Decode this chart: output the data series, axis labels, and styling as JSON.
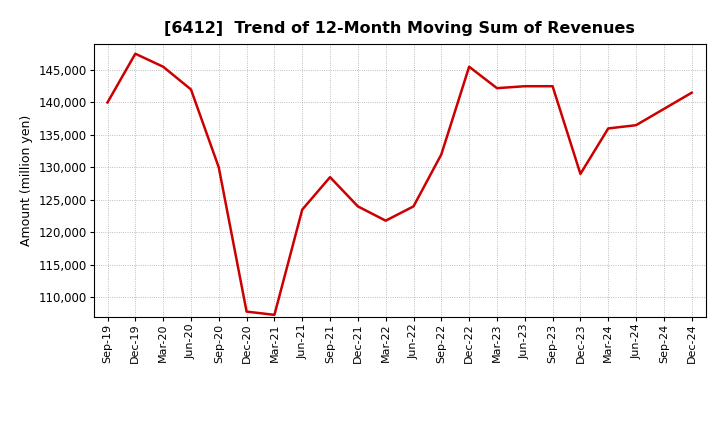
{
  "title": "[6412]  Trend of 12-Month Moving Sum of Revenues",
  "ylabel": "Amount (million yen)",
  "line_color": "#CC0000",
  "line_width": 1.8,
  "background_color": "#FFFFFF",
  "plot_bg_color": "#FFFFFF",
  "grid_color": "#AAAAAA",
  "grid_style": "dotted",
  "ylim": [
    107000,
    149000
  ],
  "yticks": [
    110000,
    115000,
    120000,
    125000,
    130000,
    135000,
    140000,
    145000
  ],
  "x_labels": [
    "Sep-19",
    "Dec-19",
    "Mar-20",
    "Jun-20",
    "Sep-20",
    "Dec-20",
    "Mar-21",
    "Jun-21",
    "Sep-21",
    "Dec-21",
    "Mar-22",
    "Jun-22",
    "Sep-22",
    "Dec-22",
    "Mar-23",
    "Jun-23",
    "Sep-23",
    "Dec-23",
    "Mar-24",
    "Jun-24",
    "Sep-24",
    "Dec-24"
  ],
  "y_values": [
    140000,
    147500,
    145500,
    142000,
    130000,
    107800,
    107300,
    123500,
    128500,
    124000,
    121800,
    124000,
    132000,
    145500,
    142200,
    142500,
    142500,
    129000,
    136000,
    136500,
    139000,
    141500
  ],
  "title_fontsize": 11.5,
  "ylabel_fontsize": 9,
  "xtick_fontsize": 8,
  "ytick_fontsize": 8.5
}
